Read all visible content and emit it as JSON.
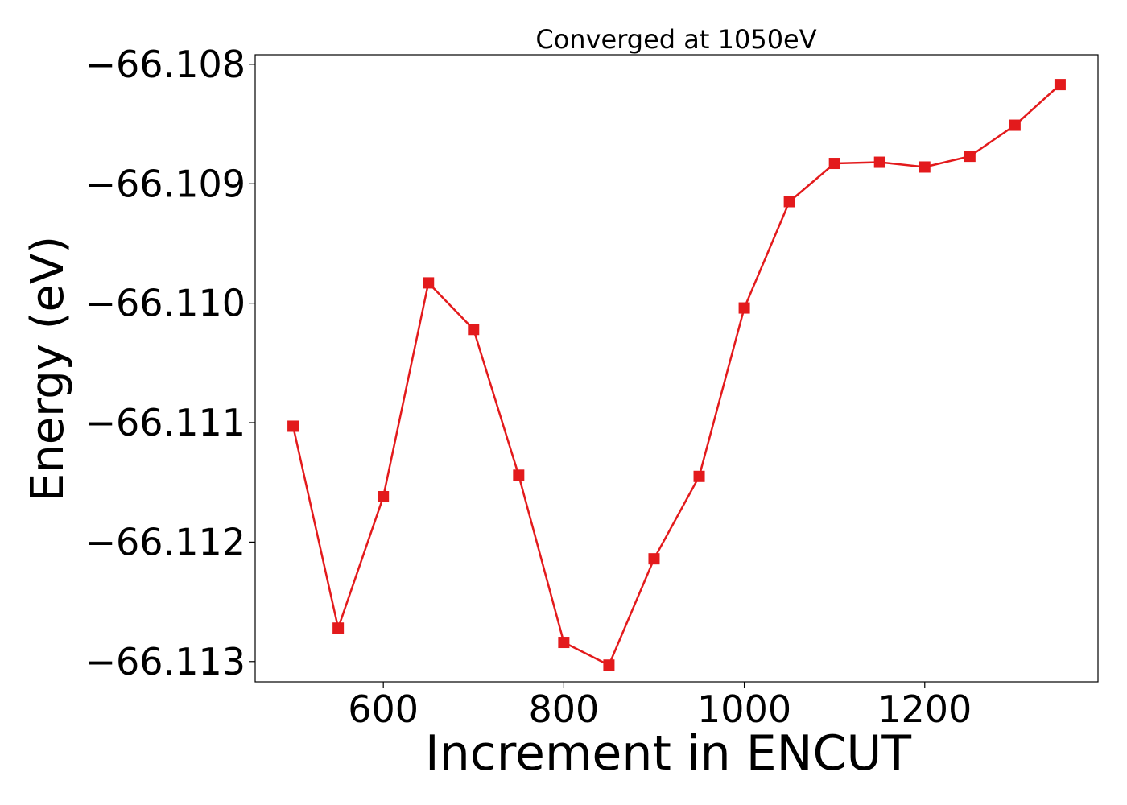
{
  "chart_data": {
    "type": "line",
    "title": "Converged at 1050eV",
    "xlabel": "Increment in ENCUT",
    "ylabel": "Energy (eV)",
    "xlim": [
      458,
      1392
    ],
    "ylim": [
      -66.11317,
      -66.10792
    ],
    "xticks": [
      600,
      800,
      1000,
      1200
    ],
    "xtick_labels": [
      "600",
      "800",
      "1000",
      "1200"
    ],
    "yticks": [
      -66.113,
      -66.112,
      -66.111,
      -66.11,
      -66.109,
      -66.108
    ],
    "ytick_labels": [
      "−66.113",
      "−66.112",
      "−66.111",
      "−66.110",
      "−66.109",
      "−66.108"
    ],
    "grid": false,
    "legend": false,
    "marker": "square",
    "colors": {
      "series": "#e31a1c",
      "axes": "#000000"
    },
    "series": [
      {
        "x": [
          500,
          550,
          600,
          650,
          700,
          750,
          800,
          850,
          900,
          950,
          1000,
          1050,
          1100,
          1150,
          1200,
          1250,
          1300,
          1350
        ],
        "y": [
          -66.11103,
          -66.11272,
          -66.11162,
          -66.10983,
          -66.11022,
          -66.11144,
          -66.11284,
          -66.11303,
          -66.11214,
          -66.11145,
          -66.11004,
          -66.10915,
          -66.10883,
          -66.10882,
          -66.10886,
          -66.10877,
          -66.10851,
          -66.10817
        ]
      }
    ]
  }
}
